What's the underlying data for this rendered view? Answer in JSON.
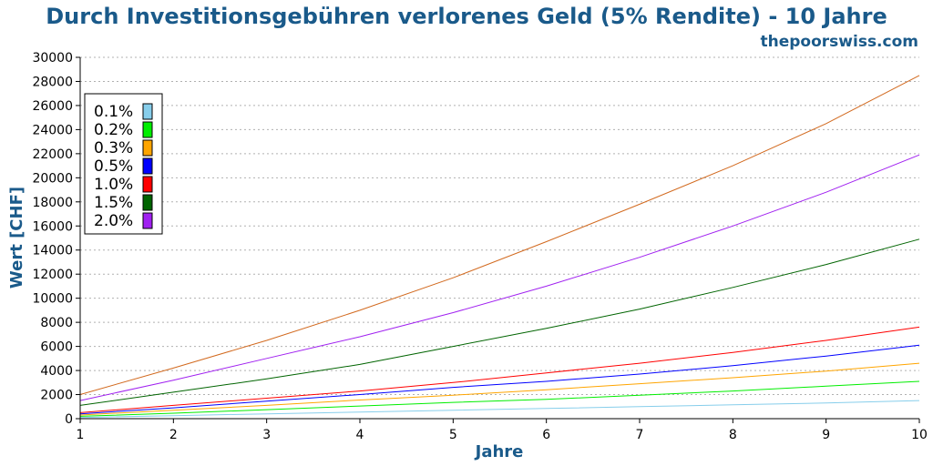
{
  "chart_data": {
    "type": "line",
    "title": "Durch Investitionsgebühren verlorenes Geld (5% Rendite) - 10 Jahre",
    "subtitle": "thepoorswiss.com",
    "xlabel": "Jahre",
    "ylabel": "Wert [CHF]",
    "xlim": [
      1,
      10
    ],
    "ylim": [
      0,
      30000
    ],
    "x": [
      1,
      2,
      3,
      4,
      5,
      6,
      7,
      8,
      9,
      10
    ],
    "x_ticks": [
      "1",
      "2",
      "3",
      "4",
      "5",
      "6",
      "7",
      "8",
      "9",
      "10"
    ],
    "y_ticks": [
      "0",
      "2000",
      "4000",
      "6000",
      "8000",
      "10000",
      "12000",
      "14000",
      "16000",
      "18000",
      "20000",
      "22000",
      "24000",
      "26000",
      "28000",
      "30000"
    ],
    "grid": "horizontal-dotted",
    "legend_position": "top-left",
    "series": [
      {
        "name": "0.1%",
        "color": "#87ceeb",
        "values": [
          100,
          250,
          400,
          550,
          700,
          850,
          1000,
          1150,
          1300,
          1500
        ]
      },
      {
        "name": "0.2%",
        "color": "#00ee00",
        "values": [
          200,
          450,
          750,
          1050,
          1350,
          1600,
          1950,
          2300,
          2700,
          3100
        ]
      },
      {
        "name": "0.3%",
        "color": "#ffa500",
        "values": [
          300,
          700,
          1100,
          1550,
          1950,
          2400,
          2900,
          3400,
          3950,
          4600
        ]
      },
      {
        "name": "0.5%",
        "color": "#0000ff",
        "values": [
          400,
          900,
          1450,
          2000,
          2600,
          3100,
          3700,
          4400,
          5200,
          6100
        ]
      },
      {
        "name": "1.0%",
        "color": "#ff0000",
        "values": [
          500,
          1100,
          1700,
          2300,
          3000,
          3800,
          4600,
          5500,
          6500,
          7600
        ]
      },
      {
        "name": "1.5%",
        "color": "#006400",
        "values": [
          1100,
          2200,
          3300,
          4500,
          6000,
          7500,
          9100,
          10900,
          12800,
          14900
        ]
      },
      {
        "name": "2.0%",
        "color": "#a020f0",
        "values": [
          1500,
          3200,
          5000,
          6800,
          8800,
          11000,
          13400,
          16000,
          18800,
          21900
        ]
      },
      {
        "name": "",
        "color": "#d2691e",
        "values": [
          2000,
          4200,
          6500,
          9000,
          11700,
          14700,
          17800,
          21000,
          24500,
          28500
        ]
      }
    ]
  }
}
